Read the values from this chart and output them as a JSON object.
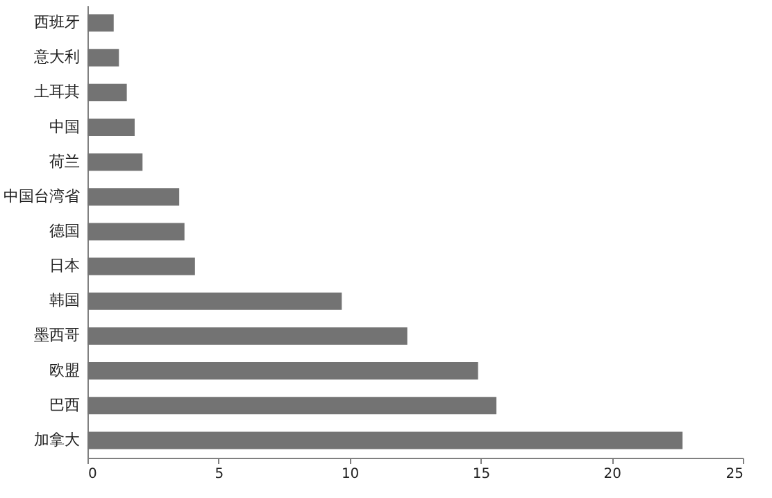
{
  "chart_data": {
    "type": "bar",
    "orientation": "horizontal",
    "categories": [
      "西班牙",
      "意大利",
      "土耳其",
      "中国",
      "荷兰",
      "中国台湾省",
      "德国",
      "日本",
      "韩国",
      "墨西哥",
      "欧盟",
      "巴西",
      "加拿大"
    ],
    "values": [
      1.0,
      1.2,
      1.5,
      1.8,
      2.1,
      3.5,
      3.7,
      4.1,
      9.7,
      12.2,
      14.9,
      15.6,
      22.7
    ],
    "color": "#737373",
    "xlim": [
      0,
      25
    ],
    "xticks": [
      0,
      5,
      10,
      15,
      20,
      25
    ],
    "grid": false
  }
}
